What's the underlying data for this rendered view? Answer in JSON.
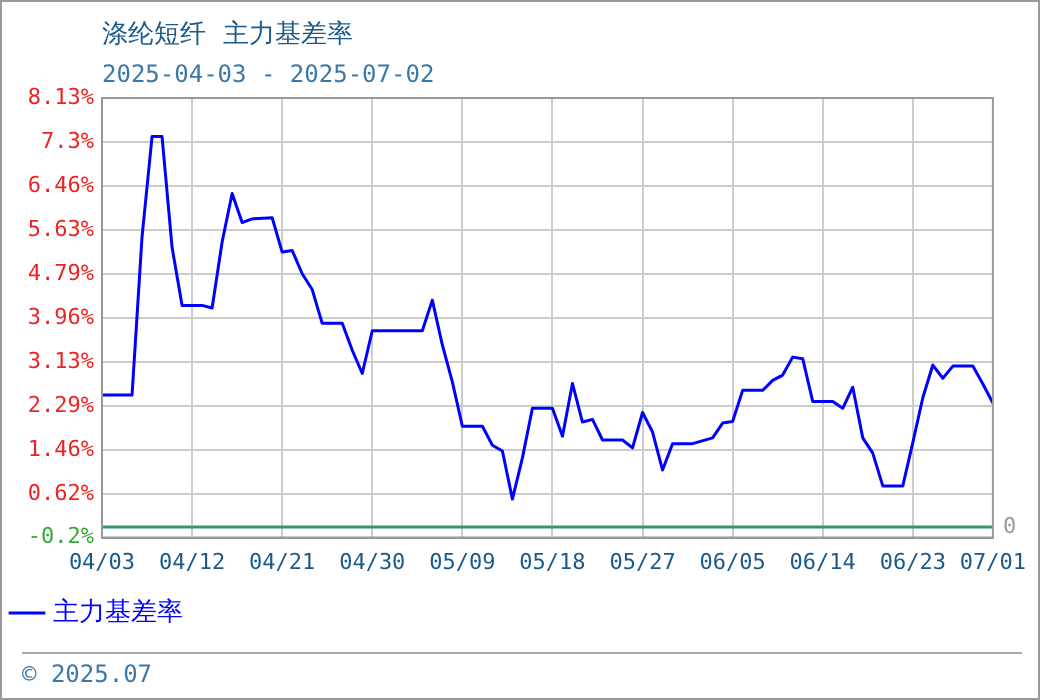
{
  "chart_data": {
    "type": "line",
    "title": "涤纶短纤  主力基差率",
    "subtitle": "2025-04-03 - 2025-07-02",
    "x": [
      "2025-04-03",
      "2025-04-06",
      "2025-04-07",
      "2025-04-08",
      "2025-04-09",
      "2025-04-10",
      "2025-04-11",
      "2025-04-13",
      "2025-04-14",
      "2025-04-15",
      "2025-04-16",
      "2025-04-17",
      "2025-04-18",
      "2025-04-20",
      "2025-04-21",
      "2025-04-22",
      "2025-04-23",
      "2025-04-24",
      "2025-04-25",
      "2025-04-27",
      "2025-04-28",
      "2025-04-29",
      "2025-04-30",
      "2025-05-05",
      "2025-05-06",
      "2025-05-07",
      "2025-05-08",
      "2025-05-09",
      "2025-05-11",
      "2025-05-12",
      "2025-05-13",
      "2025-05-14",
      "2025-05-15",
      "2025-05-16",
      "2025-05-18",
      "2025-05-19",
      "2025-05-20",
      "2025-05-21",
      "2025-05-22",
      "2025-05-23",
      "2025-05-25",
      "2025-05-26",
      "2025-05-27",
      "2025-05-28",
      "2025-05-29",
      "2025-05-30",
      "2025-06-01",
      "2025-06-03",
      "2025-06-04",
      "2025-06-05",
      "2025-06-06",
      "2025-06-08",
      "2025-06-09",
      "2025-06-10",
      "2025-06-11",
      "2025-06-12",
      "2025-06-13",
      "2025-06-15",
      "2025-06-16",
      "2025-06-17",
      "2025-06-18",
      "2025-06-19",
      "2025-06-20",
      "2025-06-22",
      "2025-06-23",
      "2025-06-24",
      "2025-06-25",
      "2025-06-26",
      "2025-06-27",
      "2025-06-29",
      "2025-06-30",
      "2025-07-01"
    ],
    "series": [
      {
        "name": "主力基差率",
        "color": "#0000ff",
        "values": [
          2.5,
          2.5,
          5.5,
          7.4,
          7.4,
          5.3,
          4.2,
          4.2,
          4.15,
          5.4,
          6.32,
          5.77,
          5.84,
          5.86,
          5.21,
          5.24,
          4.8,
          4.5,
          3.86,
          3.86,
          3.35,
          2.91,
          3.72,
          3.72,
          4.3,
          3.45,
          2.75,
          1.91,
          1.91,
          1.55,
          1.44,
          0.53,
          1.31,
          2.25,
          2.25,
          1.72,
          2.72,
          1.99,
          2.04,
          1.65,
          1.65,
          1.5,
          2.17,
          1.8,
          1.08,
          1.58,
          1.58,
          1.69,
          1.97,
          2.0,
          2.59,
          2.59,
          2.78,
          2.88,
          3.22,
          3.19,
          2.38,
          2.38,
          2.25,
          2.65,
          1.69,
          1.4,
          0.78,
          0.78,
          1.6,
          2.45,
          3.07,
          2.82,
          3.05,
          3.05,
          2.71,
          2.35
        ]
      }
    ],
    "xlim": [
      "2025-04-03",
      "2025-07-01"
    ],
    "xticks": [
      {
        "value": "2025-04-03",
        "label": "04/03"
      },
      {
        "value": "2025-04-12",
        "label": "04/12"
      },
      {
        "value": "2025-04-21",
        "label": "04/21"
      },
      {
        "value": "2025-04-30",
        "label": "04/30"
      },
      {
        "value": "2025-05-09",
        "label": "05/09"
      },
      {
        "value": "2025-05-18",
        "label": "05/18"
      },
      {
        "value": "2025-05-27",
        "label": "05/27"
      },
      {
        "value": "2025-06-05",
        "label": "06/05"
      },
      {
        "value": "2025-06-14",
        "label": "06/14"
      },
      {
        "value": "2025-06-23",
        "label": "06/23"
      },
      {
        "value": "2025-07-01",
        "label": "07/01"
      }
    ],
    "ylim": [
      -0.2,
      8.13
    ],
    "yticks": [
      {
        "value": -0.2,
        "label": "-0.2%"
      },
      {
        "value": 0.62,
        "label": "0.62%"
      },
      {
        "value": 1.46,
        "label": "1.46%"
      },
      {
        "value": 2.29,
        "label": "2.29%"
      },
      {
        "value": 3.13,
        "label": "3.13%"
      },
      {
        "value": 3.96,
        "label": "3.96%"
      },
      {
        "value": 4.79,
        "label": "4.79%"
      },
      {
        "value": 5.63,
        "label": "5.63%"
      },
      {
        "value": 6.46,
        "label": "6.46%"
      },
      {
        "value": 7.3,
        "label": "7.3%"
      },
      {
        "value": 8.13,
        "label": "8.13%"
      }
    ],
    "ref_lines": [
      {
        "axis": "y",
        "value": 0,
        "label": "0",
        "color": "#339966"
      }
    ],
    "annotations": [
      "© 2025.07"
    ],
    "grid": true,
    "legend": "bottom left",
    "marker": "none",
    "line_style": "solid"
  }
}
